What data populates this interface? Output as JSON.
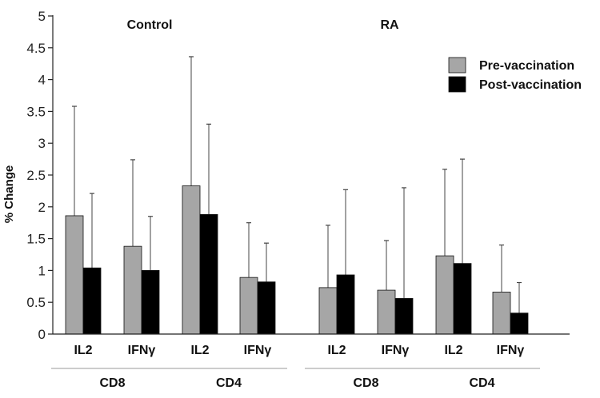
{
  "chart_data": {
    "type": "bar",
    "ylabel": "% Change",
    "ylim": [
      0,
      5
    ],
    "yticks": [
      "0",
      "0.5",
      "1",
      "1.5",
      "2",
      "2.5",
      "3",
      "3.5",
      "4",
      "4.5",
      "5"
    ],
    "panels": [
      {
        "title": "Control",
        "groups": [
          {
            "label": "CD8",
            "categories": [
              "IL2",
              "IFNγ"
            ]
          },
          {
            "label": "CD4",
            "categories": [
              "IL2",
              "IFNγ"
            ]
          }
        ]
      },
      {
        "title": "RA",
        "groups": [
          {
            "label": "CD8",
            "categories": [
              "IL2",
              "IFNγ"
            ]
          },
          {
            "label": "CD4",
            "categories": [
              "IL2",
              "IFNγ"
            ]
          }
        ]
      }
    ],
    "categories": [
      "Control CD8 IL2",
      "Control CD8 IFNγ",
      "Control CD4 IL2",
      "Control CD4 IFNγ",
      "RA CD8 IL2",
      "RA CD8 IFNγ",
      "RA CD4 IL2",
      "RA CD4 IFNγ"
    ],
    "series": [
      {
        "name": "Pre-vaccination",
        "color": "#a6a6a6",
        "values": [
          1.86,
          1.38,
          2.33,
          0.89,
          0.73,
          0.69,
          1.23,
          0.66
        ],
        "error_upper": [
          3.58,
          2.74,
          4.36,
          1.75,
          1.71,
          1.47,
          2.59,
          1.4
        ]
      },
      {
        "name": "Post-vaccination",
        "color": "#000000",
        "values": [
          1.04,
          1.0,
          1.88,
          0.82,
          0.93,
          0.56,
          1.11,
          0.33
        ],
        "error_upper": [
          2.21,
          1.85,
          3.3,
          1.43,
          2.27,
          2.3,
          2.75,
          0.81
        ]
      }
    ],
    "legend_position": "top-right"
  }
}
